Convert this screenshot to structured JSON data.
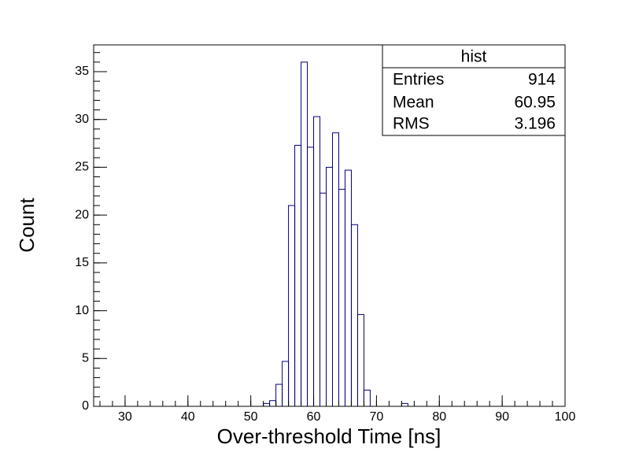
{
  "chart_data": {
    "type": "histogram",
    "xlabel": "Over-threshold Time [ns]",
    "ylabel": "Count",
    "bins": [
      25,
      26,
      27,
      28,
      29,
      30,
      31,
      32,
      33,
      34,
      35,
      36,
      37,
      38,
      39,
      40,
      41,
      42,
      43,
      44,
      45,
      46,
      47,
      48,
      49,
      50,
      51,
      52,
      53,
      54,
      55,
      56,
      57,
      58,
      59,
      60,
      61,
      62,
      63,
      64,
      65,
      66,
      67,
      68,
      69,
      70,
      71,
      72,
      73,
      74,
      75,
      76,
      77,
      78,
      79,
      80,
      81,
      82,
      83,
      84,
      85,
      86,
      87,
      88,
      89,
      90,
      91,
      92,
      93,
      94,
      95,
      96,
      97,
      98,
      99,
      100
    ],
    "values": [
      0,
      0,
      0,
      0,
      0,
      0,
      0,
      0,
      0,
      0,
      0,
      0,
      0,
      0,
      0,
      0,
      0,
      0,
      0,
      0,
      0,
      0,
      0,
      0,
      0,
      0,
      0,
      0.3,
      0.6,
      2.3,
      4.7,
      21,
      27.3,
      36,
      27.1,
      30.3,
      22.3,
      25,
      28.6,
      22.7,
      24.7,
      19,
      9.6,
      1.7,
      0,
      0,
      0,
      0,
      0,
      0.3,
      0,
      0,
      0,
      0,
      0,
      0,
      0,
      0,
      0,
      0,
      0,
      0,
      0,
      0,
      0,
      0,
      0,
      0,
      0,
      0,
      0,
      0,
      0,
      0,
      0
    ],
    "color": "#000080",
    "xlim": [
      25,
      100
    ],
    "xticks": [
      30,
      40,
      50,
      60,
      70,
      80,
      90,
      100
    ],
    "ylim": [
      0,
      37.8
    ],
    "yticks": [
      0,
      5,
      10,
      15,
      20,
      25,
      30,
      35
    ],
    "stats": {
      "title": "hist",
      "rows": [
        {
          "label": "Entries",
          "value": 914
        },
        {
          "label": "Mean",
          "value": 60.95
        },
        {
          "label": "RMS",
          "value": 3.196
        }
      ]
    }
  }
}
